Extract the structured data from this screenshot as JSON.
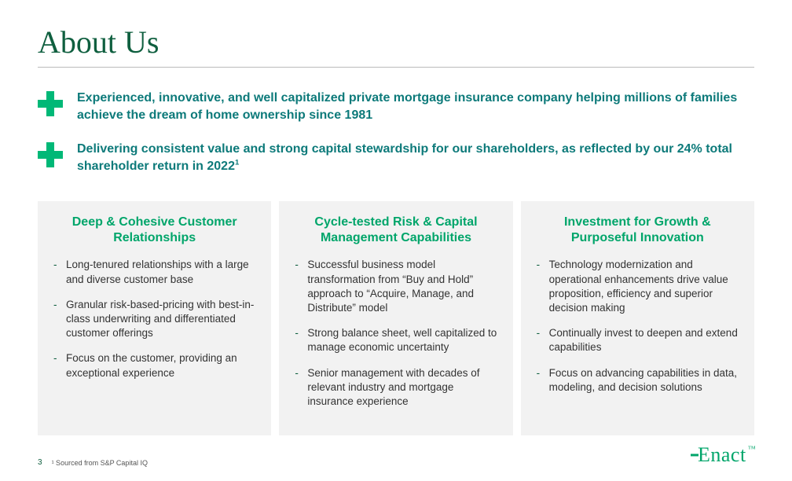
{
  "title": "About Us",
  "headlines": [
    "Experienced, innovative, and well capitalized private mortgage insurance company helping millions of families achieve the dream of home ownership since 1981",
    "Delivering consistent value and strong capital stewardship for our shareholders, as reflected by our 24% total shareholder return in 2022"
  ],
  "headline_sup": "1",
  "columns": [
    {
      "title": "Deep & Cohesive Customer Relationships",
      "bullets": [
        "Long-tenured relationships with a large and diverse customer base",
        "Granular risk-based-pricing with best-in-class underwriting and differentiated customer offerings",
        "Focus on the customer, providing an exceptional experience"
      ]
    },
    {
      "title": "Cycle-tested Risk & Capital Management Capabilities",
      "bullets": [
        "Successful business model transformation from “Buy and Hold” approach to “Acquire, Manage, and Distribute” model",
        "Strong balance sheet, well capitalized to manage economic uncertainty",
        "Senior management with decades of relevant industry and mortgage insurance experience"
      ]
    },
    {
      "title": "Investment for Growth & Purposeful Innovation",
      "bullets": [
        "Technology modernization and operational enhancements drive value proposition, efficiency and superior decision making",
        "Continually invest to deepen and extend capabilities",
        "Focus on advancing capabilities in data, modeling, and decision solutions"
      ]
    }
  ],
  "page_number": "3",
  "footnote": "¹ Sourced from S&P Capital IQ",
  "logo_text": "nact",
  "logo_tm": "™",
  "colors": {
    "title": "#0f5f3f",
    "accent_green": "#00b877",
    "teal_text": "#0d7a7a",
    "col_title": "#00a56a",
    "col_bg": "#f2f2f2",
    "body_text": "#333333",
    "rule": "#bbbbbb"
  },
  "typography": {
    "title_fontsize_pt": 30,
    "headline_fontsize_pt": 12,
    "col_title_fontsize_pt": 12,
    "bullet_fontsize_pt": 10,
    "footnote_fontsize_pt": 7
  }
}
